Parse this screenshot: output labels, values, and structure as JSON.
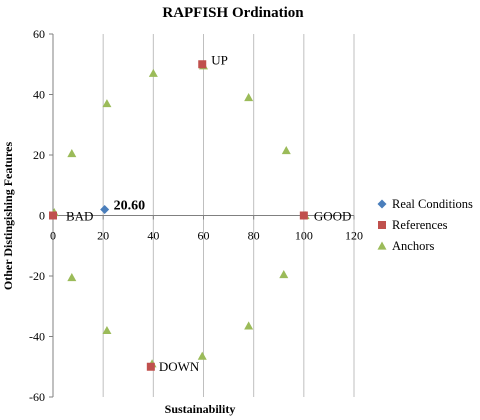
{
  "chart_data": {
    "type": "scatter",
    "title": "RAPFISH Ordination",
    "xlabel": "Sustainability",
    "ylabel": "Other Distingishing Features",
    "xlim": [
      0,
      120
    ],
    "ylim": [
      -60,
      60
    ],
    "xticks": [
      "0",
      "20",
      "40",
      "60",
      "80",
      "100",
      "120"
    ],
    "yticks": [
      "-60",
      "-40",
      "-20",
      "0",
      "20",
      "40",
      "60"
    ],
    "grid": "vertical",
    "legend": "right",
    "series": [
      {
        "name": "Real Conditions",
        "marker": "diamond",
        "color": "#4a7ebb",
        "points": [
          {
            "x": 20.6,
            "y": 2
          }
        ]
      },
      {
        "name": "References",
        "marker": "square",
        "color": "#c0504d",
        "points": [
          {
            "x": 0,
            "y": 0
          },
          {
            "x": 100,
            "y": 0
          },
          {
            "x": 59.5,
            "y": 50
          },
          {
            "x": 39,
            "y": -50
          }
        ]
      },
      {
        "name": "Anchors",
        "marker": "triangle",
        "color": "#9bbb59",
        "points": [
          {
            "x": 0.5,
            "y": 1
          },
          {
            "x": 7.5,
            "y": 20.5
          },
          {
            "x": 21.5,
            "y": 37
          },
          {
            "x": 40,
            "y": 47
          },
          {
            "x": 60,
            "y": 49.5
          },
          {
            "x": 78,
            "y": 39
          },
          {
            "x": 93,
            "y": 21.5
          },
          {
            "x": 100.5,
            "y": 0
          },
          {
            "x": 92,
            "y": -19.5
          },
          {
            "x": 78,
            "y": -36.5
          },
          {
            "x": 59.5,
            "y": -46.5
          },
          {
            "x": 39.5,
            "y": -49
          },
          {
            "x": 21.5,
            "y": -38
          },
          {
            "x": 7.5,
            "y": -20.5
          }
        ]
      }
    ],
    "annotations": [
      {
        "text": "20.60",
        "x": 20.6,
        "y": 2,
        "style": "bold"
      },
      {
        "text": "UP",
        "x": 59.5,
        "y": 50,
        "style": "normal"
      },
      {
        "text": "BAD",
        "x": 0,
        "y": 0,
        "style": "normal"
      },
      {
        "text": "GOOD",
        "x": 100,
        "y": 0,
        "style": "normal"
      },
      {
        "text": "DOWN",
        "x": 39,
        "y": -50,
        "style": "normal"
      }
    ]
  }
}
